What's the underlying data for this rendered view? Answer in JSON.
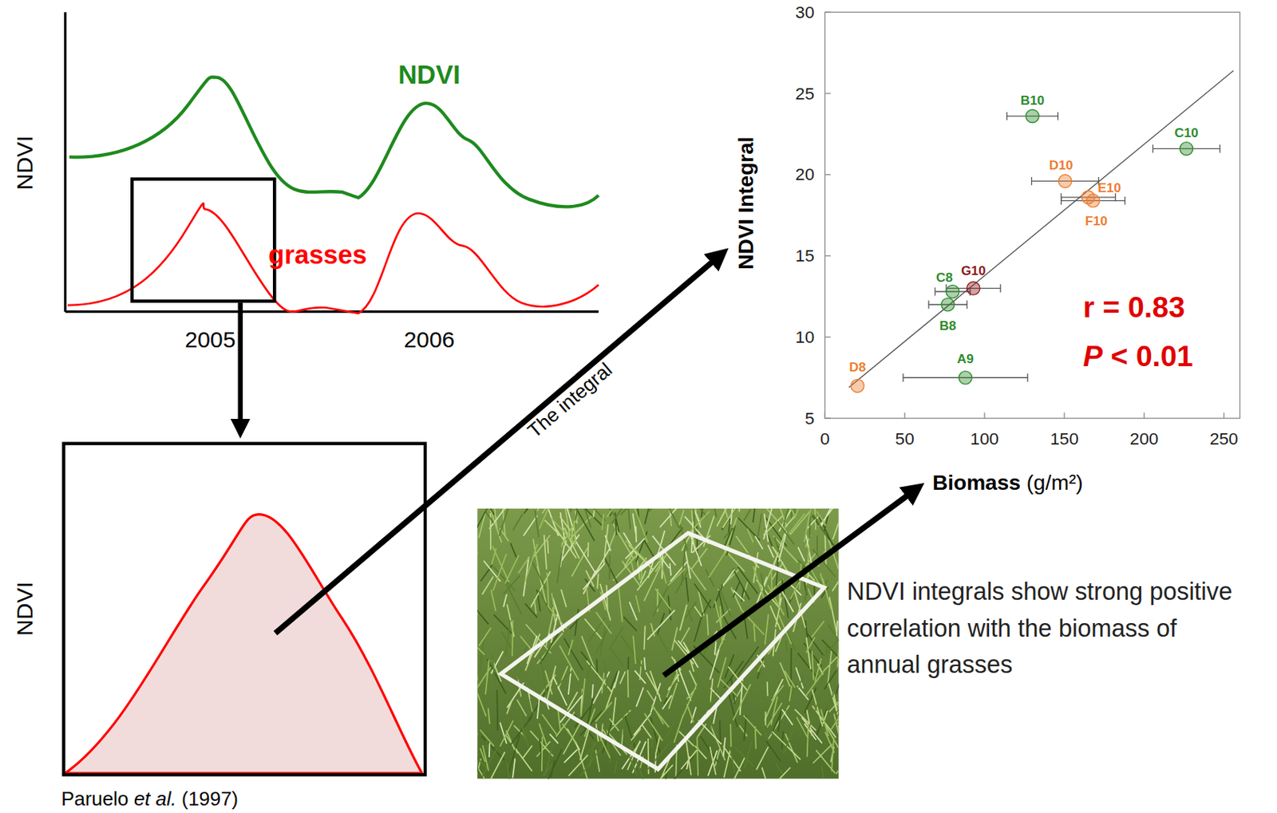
{
  "chart_data": {
    "type": "scatter",
    "x_label": [
      "Biomass",
      "(g/m²)"
    ],
    "y_label": "NDVI Integral",
    "xlim": [
      0,
      260
    ],
    "ylim": [
      5,
      30
    ],
    "xticks": [
      0,
      50,
      100,
      150,
      200,
      250
    ],
    "yticks": [
      5,
      10,
      15,
      20,
      25,
      30
    ],
    "grid": false,
    "marker": "circle",
    "point_labels": [
      "B10",
      "C10",
      "D10",
      "E10",
      "F10",
      "G10",
      "C8",
      "B8",
      "A9",
      "D8"
    ],
    "x": [
      130,
      226.5,
      150.5,
      165,
      168,
      93,
      80,
      77,
      88,
      20.4
    ],
    "values": [
      23.6,
      21.6,
      19.6,
      18.6,
      18.4,
      13.0,
      12.8,
      12.0,
      7.5,
      7.0
    ],
    "x_error": [
      16,
      21,
      21,
      17,
      20,
      17,
      11,
      12,
      39,
      0
    ],
    "colors": [
      "#2e8b2e",
      "#2e8b2e",
      "#ed7d31",
      "#ed7d31",
      "#ed7d31",
      "#8b1a1a",
      "#2e8b2e",
      "#2e8b2e",
      "#2e8b2e",
      "#ed7d31"
    ],
    "trend_line": {
      "x": [
        15,
        256
      ],
      "values": [
        6.9,
        26.4
      ]
    },
    "annotations": [
      "r = 0.83",
      "P < 0.01"
    ]
  },
  "diagram": {
    "top_panel": {
      "y_label": "NDVI",
      "series_labels": [
        "NDVI",
        "grasses"
      ],
      "years": [
        "2005",
        "2006"
      ]
    },
    "zoom_panel": {
      "y_label": "NDVI",
      "citation": [
        "Paruelo",
        "et al.",
        "(1997)"
      ]
    },
    "arrow_label": "The integral",
    "caption": "NDVI integrals show strong positive correlation with the biomass of annual grasses"
  }
}
